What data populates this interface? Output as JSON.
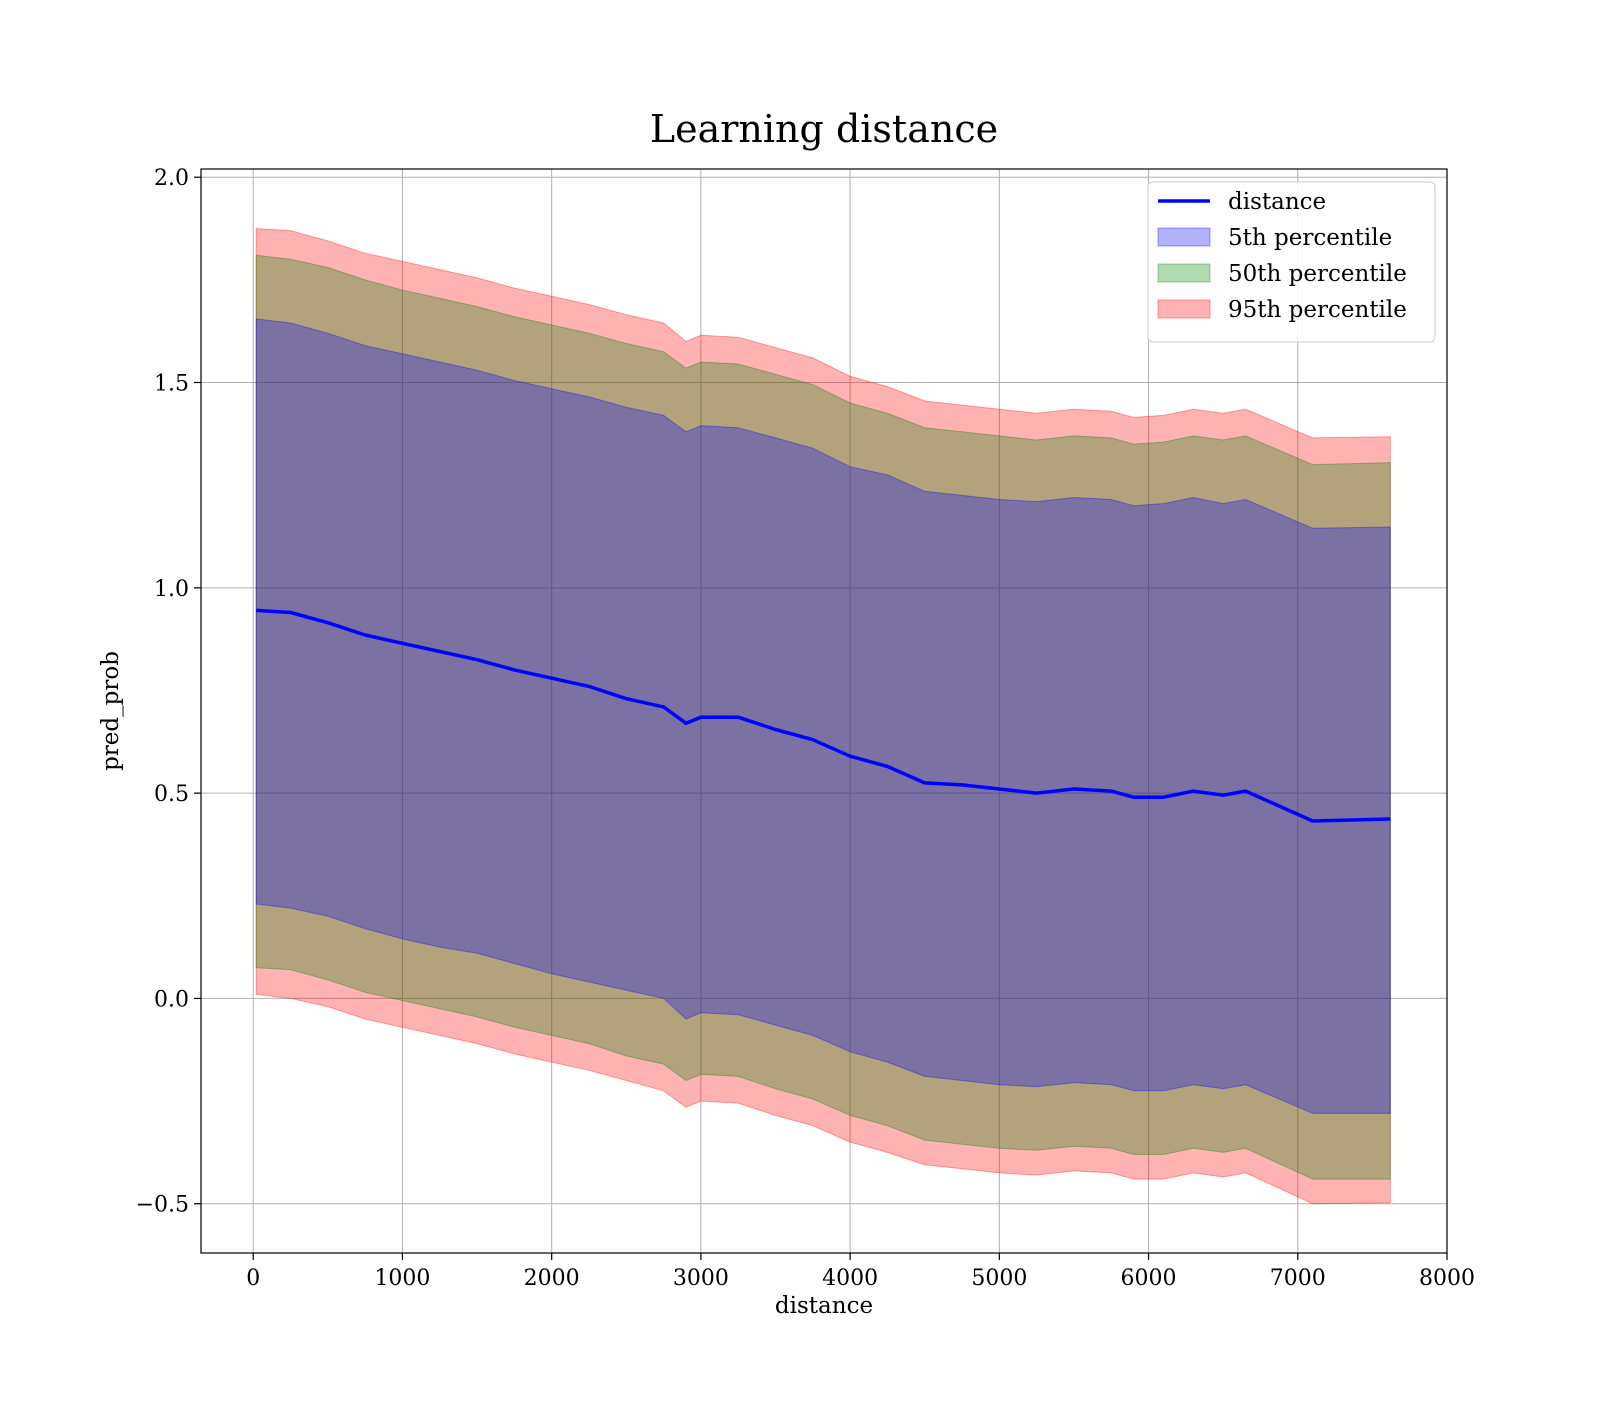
{
  "chart_data": {
    "type": "area",
    "title": "Learning distance",
    "xlabel": "distance",
    "ylabel": "pred_prob",
    "xlim": [
      -350,
      8000
    ],
    "ylim": [
      -0.62,
      2.02
    ],
    "x_ticks": [
      0,
      1000,
      2000,
      3000,
      4000,
      5000,
      6000,
      7000,
      8000
    ],
    "x_tick_labels": [
      "0",
      "1000",
      "2000",
      "3000",
      "4000",
      "5000",
      "6000",
      "7000",
      "8000"
    ],
    "y_ticks": [
      -0.5,
      0.0,
      0.5,
      1.0,
      1.5,
      2.0
    ],
    "y_tick_labels": [
      "−0.5",
      "0.0",
      "0.5",
      "1.0",
      "1.5",
      "2.0"
    ],
    "grid": true,
    "legend_position": "top-right",
    "x": [
      20,
      250,
      500,
      750,
      1000,
      1250,
      1500,
      1750,
      2000,
      2250,
      2500,
      2750,
      2900,
      3000,
      3250,
      3500,
      3750,
      4000,
      4250,
      4500,
      4750,
      5000,
      5250,
      5500,
      5750,
      5900,
      6100,
      6300,
      6500,
      6650,
      7100,
      7620
    ],
    "series": [
      {
        "name": "distance",
        "kind": "line",
        "color": "#0000ff",
        "values": [
          0.945,
          0.94,
          0.915,
          0.885,
          0.865,
          0.845,
          0.825,
          0.8,
          0.78,
          0.76,
          0.73,
          0.71,
          0.67,
          0.685,
          0.685,
          0.655,
          0.63,
          0.59,
          0.565,
          0.525,
          0.52,
          0.51,
          0.5,
          0.51,
          0.505,
          0.49,
          0.49,
          0.505,
          0.495,
          0.505,
          0.432,
          0.437
        ]
      },
      {
        "name": "5th percentile",
        "kind": "band",
        "color": "#0000ff",
        "lower": [
          0.23,
          0.22,
          0.2,
          0.17,
          0.145,
          0.125,
          0.11,
          0.085,
          0.06,
          0.04,
          0.02,
          0.0,
          -0.05,
          -0.035,
          -0.04,
          -0.065,
          -0.09,
          -0.13,
          -0.155,
          -0.19,
          -0.2,
          -0.21,
          -0.215,
          -0.205,
          -0.21,
          -0.225,
          -0.225,
          -0.21,
          -0.22,
          -0.21,
          -0.28,
          -0.28
        ],
        "upper": [
          1.655,
          1.645,
          1.62,
          1.59,
          1.57,
          1.55,
          1.53,
          1.505,
          1.485,
          1.465,
          1.44,
          1.42,
          1.38,
          1.395,
          1.39,
          1.365,
          1.34,
          1.295,
          1.275,
          1.235,
          1.225,
          1.215,
          1.21,
          1.22,
          1.215,
          1.2,
          1.205,
          1.22,
          1.205,
          1.215,
          1.145,
          1.148
        ]
      },
      {
        "name": "50th percentile",
        "kind": "band",
        "color": "#008000",
        "lower": [
          0.075,
          0.07,
          0.045,
          0.015,
          -0.005,
          -0.025,
          -0.045,
          -0.07,
          -0.09,
          -0.11,
          -0.14,
          -0.16,
          -0.2,
          -0.185,
          -0.19,
          -0.22,
          -0.245,
          -0.285,
          -0.31,
          -0.345,
          -0.355,
          -0.365,
          -0.37,
          -0.36,
          -0.365,
          -0.38,
          -0.38,
          -0.365,
          -0.375,
          -0.365,
          -0.44,
          -0.44
        ],
        "upper": [
          1.81,
          1.8,
          1.78,
          1.75,
          1.725,
          1.705,
          1.685,
          1.66,
          1.64,
          1.62,
          1.595,
          1.575,
          1.535,
          1.55,
          1.545,
          1.52,
          1.495,
          1.45,
          1.425,
          1.39,
          1.38,
          1.37,
          1.36,
          1.37,
          1.365,
          1.35,
          1.355,
          1.37,
          1.36,
          1.37,
          1.3,
          1.305
        ]
      },
      {
        "name": "95th percentile",
        "kind": "band",
        "color": "#ff0000",
        "lower": [
          0.01,
          0.0,
          -0.02,
          -0.05,
          -0.07,
          -0.09,
          -0.11,
          -0.135,
          -0.155,
          -0.175,
          -0.2,
          -0.225,
          -0.265,
          -0.25,
          -0.255,
          -0.285,
          -0.31,
          -0.35,
          -0.375,
          -0.405,
          -0.415,
          -0.425,
          -0.43,
          -0.42,
          -0.425,
          -0.44,
          -0.44,
          -0.425,
          -0.435,
          -0.425,
          -0.5,
          -0.498
        ],
        "upper": [
          1.875,
          1.87,
          1.845,
          1.815,
          1.795,
          1.775,
          1.755,
          1.73,
          1.71,
          1.69,
          1.665,
          1.645,
          1.6,
          1.615,
          1.61,
          1.585,
          1.56,
          1.515,
          1.49,
          1.455,
          1.445,
          1.435,
          1.425,
          1.435,
          1.43,
          1.415,
          1.42,
          1.435,
          1.425,
          1.435,
          1.365,
          1.368
        ]
      }
    ]
  }
}
